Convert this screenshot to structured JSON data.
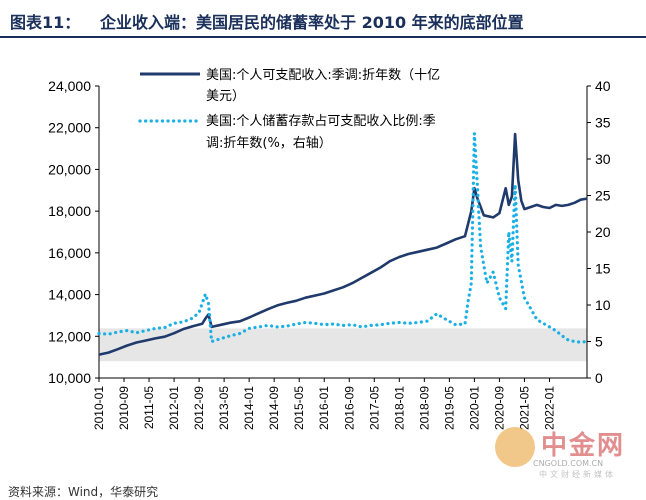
{
  "figure": {
    "label": "图表11：",
    "title": "企业收入端：美国居民的储蓄率处于 2010 年来的底部位置",
    "source": "资料来源：Wind，华泰研究",
    "title_color": "#1a2f5a"
  },
  "watermark": {
    "name": "中金网",
    "domain": "CNGOLD.COM.CN",
    "tagline": "中文财经新媒体"
  },
  "chart_data": {
    "type": "line",
    "x_tick_labels": [
      "2010-01",
      "2010-09",
      "2011-05",
      "2012-01",
      "2012-09",
      "2013-05",
      "2014-01",
      "2014-09",
      "2015-05",
      "2016-01",
      "2016-09",
      "2017-05",
      "2018-01",
      "2018-09",
      "2019-05",
      "2020-01",
      "2020-09",
      "2021-05",
      "2022-01"
    ],
    "left_axis": {
      "min": 10000,
      "max": 24000,
      "ticks": [
        "10,000",
        "12,000",
        "14,000",
        "16,000",
        "18,000",
        "20,000",
        "22,000",
        "24,000"
      ]
    },
    "right_axis": {
      "min": 0,
      "max": 40,
      "ticks": [
        "0",
        "5",
        "10",
        "15",
        "20",
        "25",
        "30",
        "35",
        "40"
      ]
    },
    "shaded_band": {
      "axis": "right",
      "from": 2.3,
      "to": 6.8,
      "color": "#e6e6e6"
    },
    "series": [
      {
        "name": "美国:个人可支配收入:季调:折年数（十亿美元）",
        "legend_lines": [
          "美国:个人可支配收入:季调:折年数（十亿",
          "美元）"
        ],
        "axis": "left",
        "style": "solid",
        "color": "#1f3a6b",
        "points": [
          [
            0,
            11120
          ],
          [
            3,
            11220
          ],
          [
            6,
            11380
          ],
          [
            9,
            11560
          ],
          [
            12,
            11700
          ],
          [
            15,
            11800
          ],
          [
            18,
            11900
          ],
          [
            21,
            11980
          ],
          [
            24,
            12150
          ],
          [
            27,
            12350
          ],
          [
            30,
            12480
          ],
          [
            33,
            12600
          ],
          [
            34,
            12850
          ],
          [
            35,
            13050
          ],
          [
            36,
            12450
          ],
          [
            39,
            12550
          ],
          [
            42,
            12650
          ],
          [
            45,
            12720
          ],
          [
            48,
            12900
          ],
          [
            51,
            13100
          ],
          [
            54,
            13300
          ],
          [
            57,
            13480
          ],
          [
            60,
            13600
          ],
          [
            63,
            13700
          ],
          [
            66,
            13850
          ],
          [
            69,
            13950
          ],
          [
            72,
            14050
          ],
          [
            75,
            14200
          ],
          [
            78,
            14350
          ],
          [
            81,
            14550
          ],
          [
            84,
            14800
          ],
          [
            87,
            15050
          ],
          [
            90,
            15300
          ],
          [
            93,
            15600
          ],
          [
            96,
            15800
          ],
          [
            99,
            15950
          ],
          [
            102,
            16050
          ],
          [
            105,
            16150
          ],
          [
            108,
            16250
          ],
          [
            111,
            16450
          ],
          [
            114,
            16650
          ],
          [
            117,
            16800
          ],
          [
            119,
            18000
          ],
          [
            120,
            19100
          ],
          [
            121,
            18600
          ],
          [
            123,
            17800
          ],
          [
            126,
            17700
          ],
          [
            128,
            17900
          ],
          [
            130,
            19100
          ],
          [
            131,
            18300
          ],
          [
            132,
            18700
          ],
          [
            133,
            21700
          ],
          [
            134,
            19500
          ],
          [
            135,
            18500
          ],
          [
            136,
            18100
          ],
          [
            138,
            18200
          ],
          [
            140,
            18300
          ],
          [
            142,
            18200
          ],
          [
            144,
            18150
          ],
          [
            146,
            18300
          ],
          [
            148,
            18250
          ],
          [
            150,
            18300
          ],
          [
            152,
            18400
          ],
          [
            154,
            18550
          ],
          [
            156,
            18600
          ]
        ]
      },
      {
        "name": "美国:个人储蓄存款占可支配收入比例:季调:折年数(%，右轴)",
        "legend_lines": [
          "美国:个人储蓄存款占可支配收入比例:季",
          "调:折年数(%，右轴）"
        ],
        "axis": "right",
        "style": "dotted",
        "color": "#1ab0e6",
        "points": [
          [
            0,
            6.1
          ],
          [
            3,
            6.0
          ],
          [
            6,
            6.3
          ],
          [
            9,
            6.5
          ],
          [
            12,
            6.2
          ],
          [
            15,
            6.5
          ],
          [
            18,
            6.8
          ],
          [
            21,
            6.9
          ],
          [
            24,
            7.5
          ],
          [
            27,
            7.7
          ],
          [
            30,
            8.2
          ],
          [
            32,
            9.0
          ],
          [
            34,
            11.5
          ],
          [
            35,
            10.2
          ],
          [
            36,
            5.0
          ],
          [
            39,
            5.4
          ],
          [
            42,
            5.8
          ],
          [
            45,
            6.1
          ],
          [
            48,
            6.8
          ],
          [
            51,
            7.0
          ],
          [
            54,
            7.2
          ],
          [
            57,
            7.0
          ],
          [
            60,
            7.1
          ],
          [
            63,
            7.4
          ],
          [
            66,
            7.6
          ],
          [
            69,
            7.5
          ],
          [
            72,
            7.3
          ],
          [
            75,
            7.4
          ],
          [
            78,
            7.2
          ],
          [
            81,
            7.3
          ],
          [
            84,
            7.0
          ],
          [
            87,
            7.2
          ],
          [
            90,
            7.3
          ],
          [
            93,
            7.5
          ],
          [
            96,
            7.6
          ],
          [
            99,
            7.5
          ],
          [
            102,
            7.6
          ],
          [
            105,
            7.8
          ],
          [
            108,
            8.8
          ],
          [
            111,
            8.0
          ],
          [
            114,
            7.3
          ],
          [
            117,
            7.4
          ],
          [
            118,
            10.5
          ],
          [
            119,
            13.0
          ],
          [
            120,
            33.5
          ],
          [
            121,
            26.0
          ],
          [
            122,
            18.0
          ],
          [
            124,
            13.0
          ],
          [
            126,
            14.5
          ],
          [
            128,
            11.0
          ],
          [
            130,
            9.5
          ],
          [
            131,
            20.0
          ],
          [
            132,
            16.0
          ],
          [
            133,
            26.5
          ],
          [
            134,
            15.5
          ],
          [
            136,
            11.0
          ],
          [
            138,
            9.5
          ],
          [
            140,
            8.0
          ],
          [
            142,
            7.5
          ],
          [
            144,
            7.0
          ],
          [
            146,
            6.5
          ],
          [
            148,
            5.8
          ],
          [
            150,
            5.2
          ],
          [
            152,
            5.0
          ],
          [
            154,
            4.9
          ],
          [
            156,
            5.0
          ]
        ]
      }
    ]
  }
}
